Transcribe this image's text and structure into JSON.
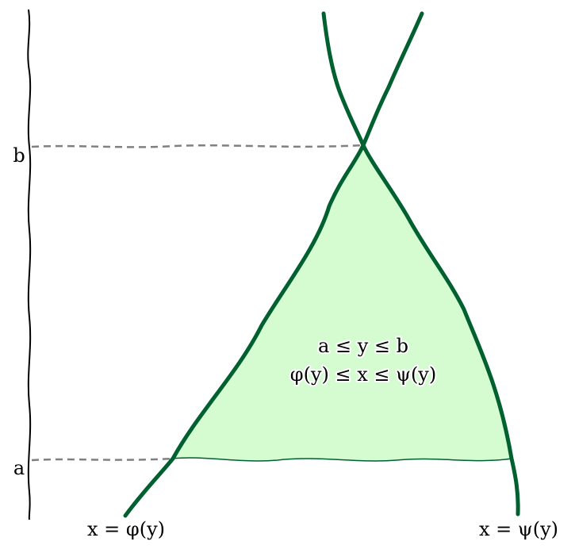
{
  "diagram": {
    "colors": {
      "region_fill": "#d4fcd0",
      "curve": "#006030",
      "axis": "#000000",
      "dashed": "#808080",
      "background": "#ffffff"
    },
    "axis_labels": {
      "b": "b",
      "a": "a"
    },
    "region_text": {
      "line1": "a ≤ y ≤ b",
      "line2": "φ(y) ≤ x ≤ ψ(y)"
    },
    "curve_labels": {
      "left": "x = φ(y)",
      "right": "x = ψ(y)"
    }
  }
}
